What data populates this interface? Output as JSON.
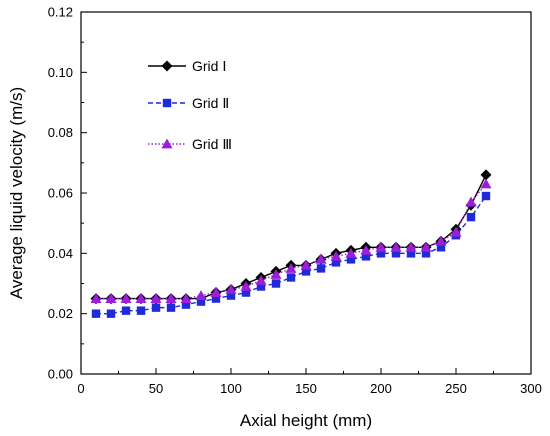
{
  "chart_data": {
    "type": "line",
    "title": "",
    "xlabel": "Axial height (mm)",
    "ylabel": "Average liquid velocity (m/s)",
    "xlim": [
      0,
      300
    ],
    "ylim": [
      0,
      0.12
    ],
    "x_ticks": [
      "0",
      "50",
      "100",
      "150",
      "200",
      "250",
      "300"
    ],
    "y_ticks": [
      "0.00",
      "0.02",
      "0.04",
      "0.06",
      "0.08",
      "0.10",
      "0.12"
    ],
    "grid": false,
    "legend_position": "top-left",
    "x": [
      10,
      20,
      30,
      40,
      50,
      60,
      70,
      80,
      90,
      100,
      110,
      120,
      130,
      140,
      150,
      160,
      170,
      180,
      190,
      200,
      210,
      220,
      230,
      240,
      250,
      260,
      270
    ],
    "series": [
      {
        "name": "Grid Ⅰ",
        "marker": "diamond",
        "line": "solid",
        "color": "#000000",
        "values": [
          0.025,
          0.025,
          0.025,
          0.025,
          0.025,
          0.025,
          0.025,
          0.025,
          0.027,
          0.028,
          0.03,
          0.032,
          0.034,
          0.036,
          0.036,
          0.038,
          0.04,
          0.041,
          0.042,
          0.042,
          0.042,
          0.042,
          0.042,
          0.044,
          0.048,
          0.056,
          0.066
        ]
      },
      {
        "name": "Grid Ⅱ",
        "marker": "square",
        "line": "dashed",
        "color": "#1f2bd8",
        "values": [
          0.02,
          0.02,
          0.021,
          0.021,
          0.022,
          0.022,
          0.023,
          0.024,
          0.025,
          0.026,
          0.027,
          0.029,
          0.03,
          0.032,
          0.034,
          0.035,
          0.037,
          0.038,
          0.039,
          0.04,
          0.04,
          0.04,
          0.04,
          0.042,
          0.046,
          0.052,
          0.059
        ]
      },
      {
        "name": "Grid Ⅲ",
        "marker": "triangle",
        "line": "dotted",
        "color": "#9b1fd8",
        "values": [
          0.025,
          0.025,
          0.025,
          0.025,
          0.025,
          0.025,
          0.025,
          0.026,
          0.027,
          0.028,
          0.029,
          0.031,
          0.033,
          0.035,
          0.036,
          0.038,
          0.039,
          0.04,
          0.041,
          0.042,
          0.042,
          0.042,
          0.042,
          0.044,
          0.047,
          0.057,
          0.063
        ]
      }
    ]
  }
}
